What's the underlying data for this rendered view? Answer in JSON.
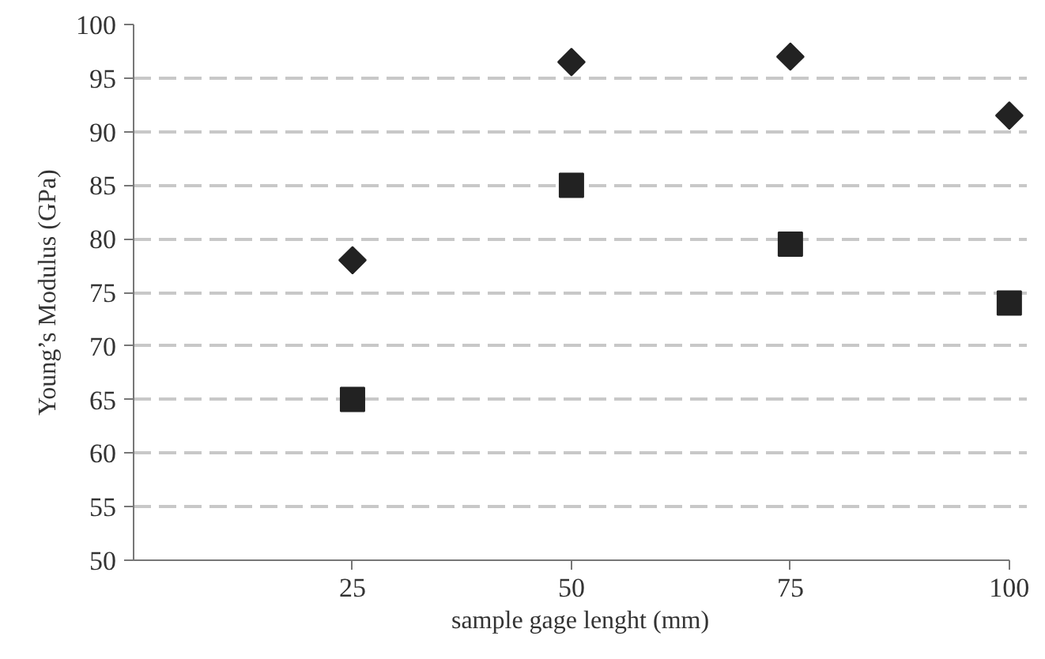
{
  "chart_data": {
    "type": "scatter",
    "xlabel": "sample gage lenght (mm)",
    "ylabel": "Young’s Modulus (GPa)",
    "x": [
      25,
      50,
      75,
      100
    ],
    "series": [
      {
        "color": "#222222",
        "marker": "diamond",
        "values": [
          78,
          96.5,
          97,
          91.5
        ]
      },
      {
        "color": "#222222",
        "marker": "square",
        "values": [
          65,
          85,
          79.5,
          74
        ]
      }
    ],
    "xlim": [
      0,
      100
    ],
    "xticks": [
      25,
      50,
      75,
      100
    ],
    "ylim": [
      50,
      100
    ],
    "yticks": [
      50,
      55,
      60,
      65,
      70,
      75,
      80,
      85,
      90,
      95,
      100
    ],
    "grid": "y"
  }
}
